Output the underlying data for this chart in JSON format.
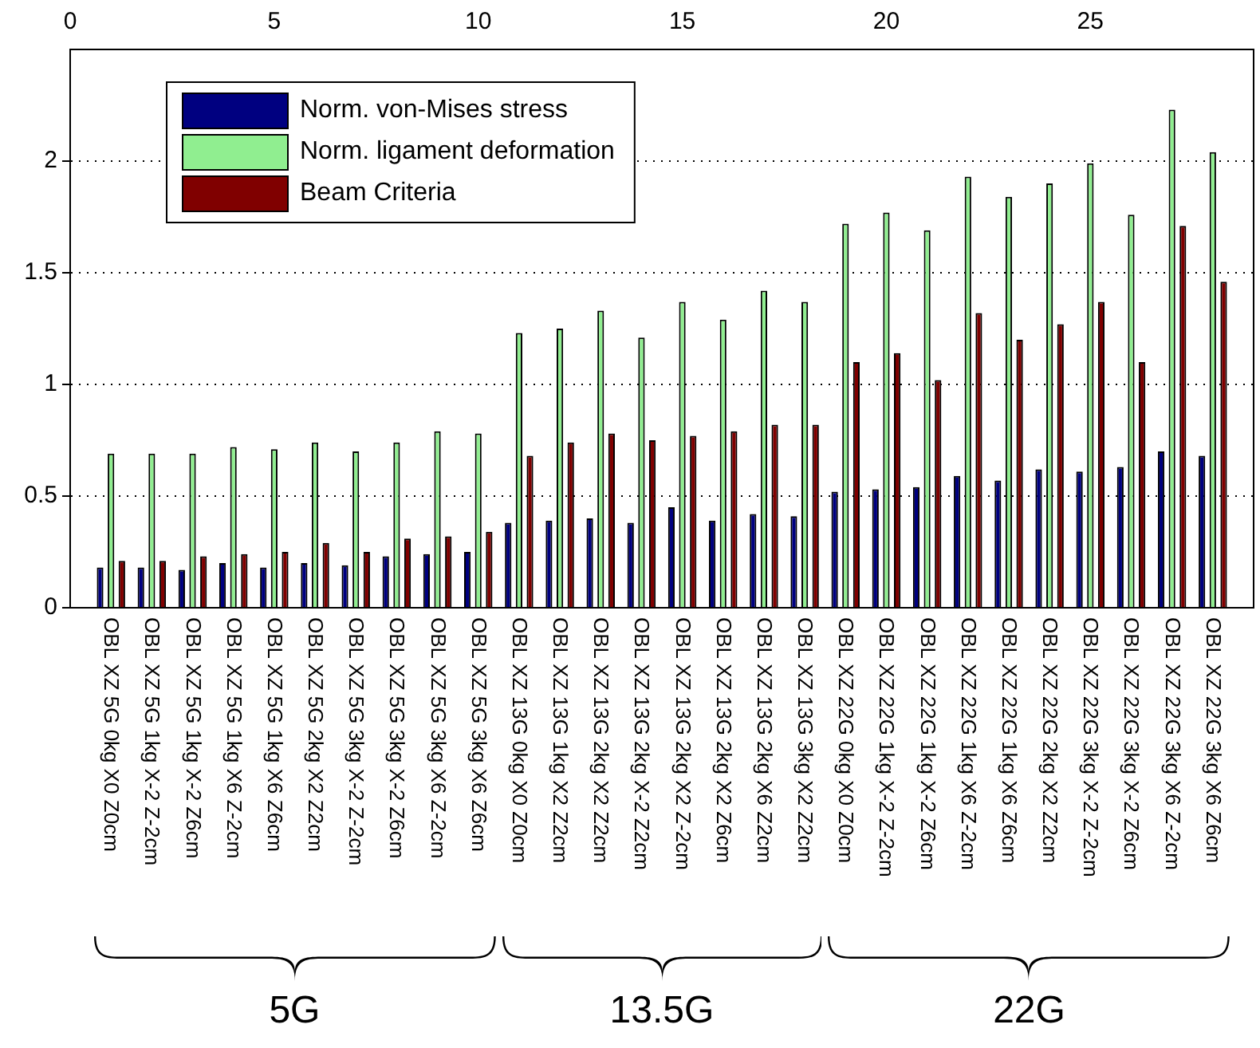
{
  "chart_data": {
    "type": "bar",
    "categories": [
      "OBL XZ 5G 0kg X0 Z0cm",
      "OBL XZ 5G 1kg X-2 Z-2cm",
      "OBL XZ 5G 1kg X-2 Z6cm",
      "OBL XZ 5G 1kg X6 Z-2cm",
      "OBL XZ 5G 1kg X6 Z6cm",
      "OBL XZ 5G 2kg X2 Z2cm",
      "OBL XZ 5G 3kg X-2 Z-2cm",
      "OBL XZ 5G 3kg X-2 Z6cm",
      "OBL XZ 5G 3kg X6 Z-2cm",
      "OBL XZ 5G 3kg X6 Z6cm",
      "OBL XZ 13G 0kg X0 Z0cm",
      "OBL XZ 13G 1kg X2 Z2cm",
      "OBL XZ 13G 2kg X2 Z2cm",
      "OBL XZ 13G 2kg X-2 Z2cm",
      "OBL XZ 13G 2kg X2 Z-2cm",
      "OBL XZ 13G 2kg X2 Z6cm",
      "OBL XZ 13G 2kg X6 Z2cm",
      "OBL XZ 13G 3kg X2 Z2cm",
      "OBL XZ 22G 0kg X0 Z0cm",
      "OBL XZ 22G 1kg X-2 Z-2cm",
      "OBL XZ 22G 1kg X-2 Z6cm",
      "OBL XZ 22G 1kg X6 Z-2cm",
      "OBL XZ 22G 1kg X6 Z6cm",
      "OBL XZ 22G 2kg X2 Z2cm",
      "OBL XZ 22G 3kg X-2 Z-2cm",
      "OBL XZ 22G 3kg X-2 Z6cm",
      "OBL XZ 22G 3kg X6 Z-2cm",
      "OBL XZ 22G 3kg X6 Z6cm"
    ],
    "series": [
      {
        "name": "Norm. von-Mises stress",
        "color": "#000080",
        "values": [
          0.18,
          0.18,
          0.17,
          0.2,
          0.18,
          0.2,
          0.19,
          0.23,
          0.24,
          0.25,
          0.38,
          0.39,
          0.4,
          0.38,
          0.45,
          0.39,
          0.42,
          0.41,
          0.52,
          0.53,
          0.54,
          0.59,
          0.57,
          0.62,
          0.61,
          0.63,
          0.7,
          0.68
        ]
      },
      {
        "name": "Norm. ligament deformation",
        "color": "#90ee90",
        "values": [
          0.69,
          0.69,
          0.69,
          0.72,
          0.71,
          0.74,
          0.7,
          0.74,
          0.79,
          0.78,
          1.23,
          1.25,
          1.33,
          1.21,
          1.37,
          1.29,
          1.42,
          1.37,
          1.72,
          1.77,
          1.69,
          1.93,
          1.84,
          1.9,
          1.99,
          1.76,
          2.23,
          2.04
        ]
      },
      {
        "name": "Beam Criteria",
        "color": "#800000",
        "values": [
          0.21,
          0.21,
          0.23,
          0.24,
          0.25,
          0.29,
          0.25,
          0.31,
          0.32,
          0.34,
          0.68,
          0.74,
          0.78,
          0.75,
          0.77,
          0.79,
          0.82,
          0.82,
          1.1,
          1.14,
          1.02,
          1.32,
          1.2,
          1.27,
          1.37,
          1.1,
          1.71,
          1.46
        ]
      }
    ],
    "ylim": [
      0,
      2.5
    ],
    "yticks": [
      0,
      0.5,
      1,
      1.5,
      2
    ],
    "x2lim": [
      0,
      29
    ],
    "x2ticks": [
      0,
      5,
      10,
      15,
      20,
      25
    ],
    "grid": "y",
    "legend": "top left",
    "annotations": [
      "5G",
      "13.5G",
      "22G"
    ]
  }
}
